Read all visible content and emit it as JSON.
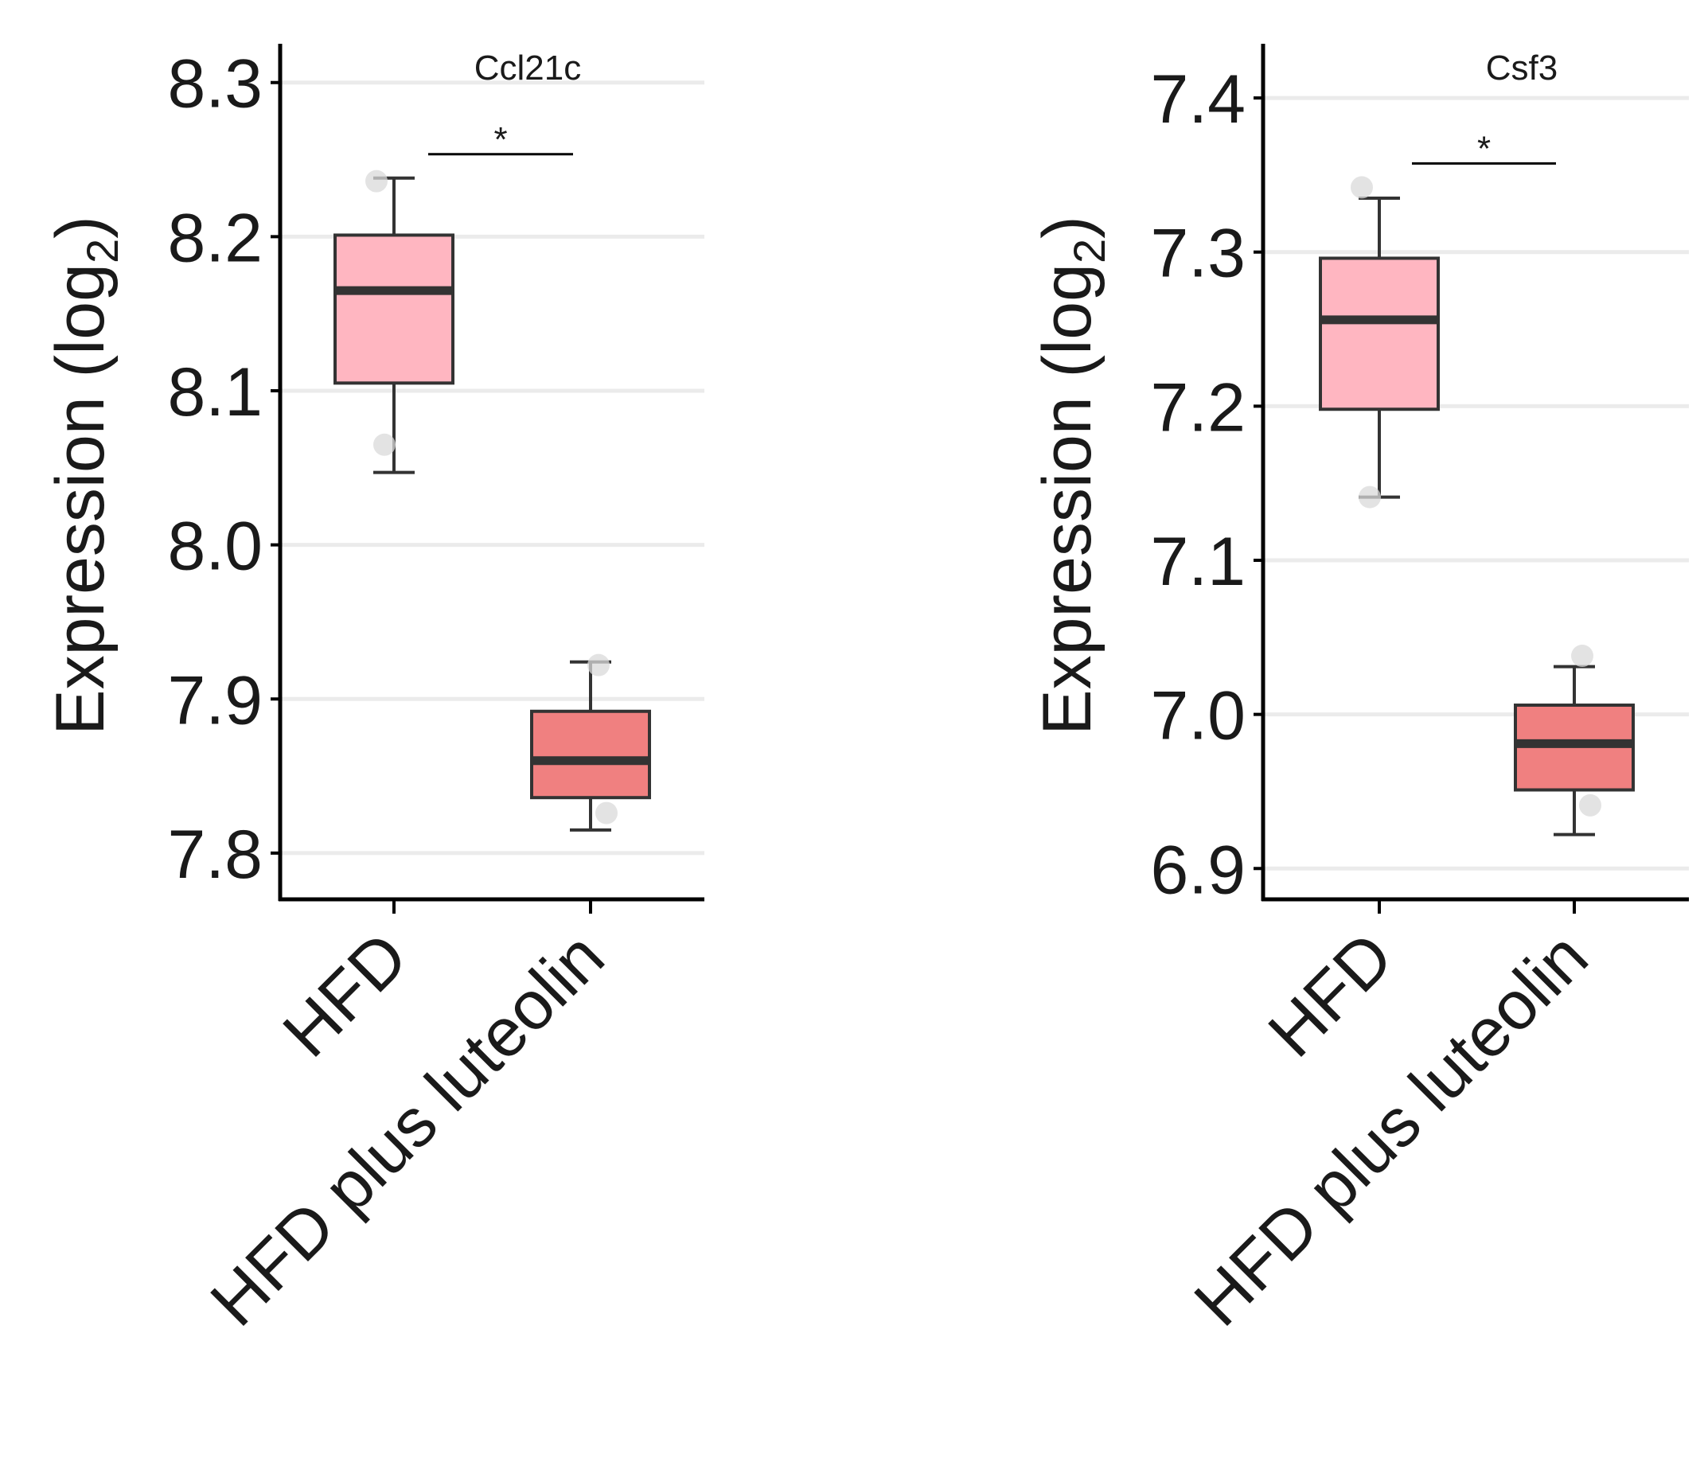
{
  "chart_data": [
    {
      "type": "box",
      "title": "Ccl21c",
      "ylabel": "Expression (log",
      "ylabel_sub": "2",
      "ylabel_close": ")",
      "ylim": [
        7.77,
        8.32
      ],
      "yticks": [
        "7.8",
        "7.9",
        "8.0",
        "8.1",
        "8.2",
        "8.3"
      ],
      "categories": [
        "HFD",
        "HFD plus luteolin"
      ],
      "fills": [
        "#ffb6c1",
        "#f08080"
      ],
      "boxes": [
        {
          "whisker_low": 8.047,
          "q1": 8.105,
          "median": 8.165,
          "q3": 8.201,
          "whisker_high": 8.238,
          "points": [
            8.236,
            8.065
          ]
        },
        {
          "whisker_low": 7.815,
          "q1": 7.836,
          "median": 7.86,
          "q3": 7.892,
          "whisker_high": 7.924,
          "points": [
            7.922,
            7.826
          ]
        }
      ],
      "significance": "*"
    },
    {
      "type": "box",
      "title": "Csf3",
      "ylabel": "Expression (log",
      "ylabel_sub": "2",
      "ylabel_close": ")",
      "ylim": [
        6.88,
        7.43
      ],
      "yticks": [
        "6.9",
        "7.0",
        "7.1",
        "7.2",
        "7.3",
        "7.4"
      ],
      "categories": [
        "HFD",
        "HFD plus luteolin"
      ],
      "fills": [
        "#ffb6c1",
        "#f08080"
      ],
      "boxes": [
        {
          "whisker_low": 7.141,
          "q1": 7.198,
          "median": 7.256,
          "q3": 7.296,
          "whisker_high": 7.335,
          "points": [
            7.342,
            7.141
          ]
        },
        {
          "whisker_low": 6.922,
          "q1": 6.951,
          "median": 6.981,
          "q3": 7.006,
          "whisker_high": 7.031,
          "points": [
            7.038,
            6.941
          ]
        }
      ],
      "significance": "*"
    }
  ],
  "colors": {
    "axis": "#000000",
    "grid": "#ebebeb",
    "box_stroke": "#333333",
    "point": "#d9d9d9"
  }
}
